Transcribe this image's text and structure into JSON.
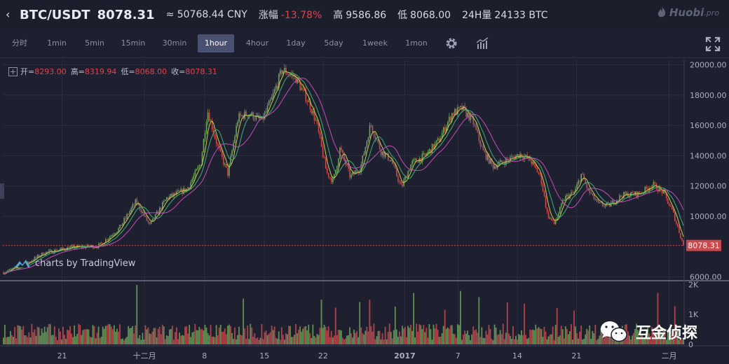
{
  "header": {
    "pair": "BTC/USDT",
    "price": "8078.31",
    "cny_label": "≈",
    "cny_value": "50768.44 CNY",
    "change_label": "涨幅",
    "change_value": "-13.78%",
    "high_label": "高",
    "high_value": "9586.86",
    "low_label": "低",
    "low_value": "8068.00",
    "volume_label": "24H量",
    "volume_value": "24133 BTC",
    "logo_text": "Huobi",
    "logo_suffix": ".pro"
  },
  "toolbar": {
    "intervals": [
      "分时",
      "1min",
      "5min",
      "15min",
      "30min",
      "1hour",
      "4hour",
      "1day",
      "5day",
      "1week",
      "1mon"
    ],
    "active": "1hour"
  },
  "ohlc": {
    "open_label": "开=",
    "open": "8293.00",
    "high_label": "高=",
    "high": "8319.94",
    "low_label": "低=",
    "low": "8068.00",
    "close_label": "收=",
    "close": "8078.31"
  },
  "watermark": {
    "tradingview": "charts by TradingView",
    "wechat": "互金侦探"
  },
  "colors": {
    "background": "#1e2030",
    "up": "#6ba35a",
    "down": "#c94a4d",
    "ma1": "#c6d24a",
    "ma2": "#3fb07a",
    "ma3": "#c54eb8",
    "price_tag": "#c94a4d"
  },
  "chart_data": {
    "type": "candlestick",
    "title": "",
    "price_axis": {
      "ylim": [
        5800,
        20300
      ],
      "ticks": [
        {
          "value": 20000,
          "label": "20000.00"
        },
        {
          "value": 18000,
          "label": "18000.00"
        },
        {
          "value": 16000,
          "label": "16000.00"
        },
        {
          "value": 14000,
          "label": "14000.00"
        },
        {
          "value": 12000,
          "label": "12000.00"
        },
        {
          "value": 10000,
          "label": "10000.00"
        },
        {
          "value": 6000,
          "label": "6000.00"
        }
      ],
      "last_price": 8078.31,
      "last_price_label": "8078.31"
    },
    "volume_axis": {
      "ylim": [
        0,
        2100
      ],
      "ticks": [
        {
          "value": 2000,
          "label": "2K"
        },
        {
          "value": 1000,
          "label": "1K"
        },
        {
          "value": 0,
          "label": "0"
        }
      ]
    },
    "x_axis": {
      "tick_labels": [
        "21",
        "十二月",
        "8",
        "15",
        "22",
        "2017",
        "7",
        "14",
        "21",
        "二月"
      ],
      "tick_positions": [
        0.087,
        0.208,
        0.296,
        0.384,
        0.47,
        0.59,
        0.668,
        0.755,
        0.842,
        0.978
      ]
    },
    "price_path_keypoints": [
      [
        0.0,
        6300
      ],
      [
        0.03,
        6800
      ],
      [
        0.06,
        7600
      ],
      [
        0.1,
        7950
      ],
      [
        0.14,
        8050
      ],
      [
        0.17,
        9200
      ],
      [
        0.195,
        11000
      ],
      [
        0.215,
        9400
      ],
      [
        0.24,
        11200
      ],
      [
        0.27,
        11800
      ],
      [
        0.29,
        13500
      ],
      [
        0.3,
        17000
      ],
      [
        0.315,
        14600
      ],
      [
        0.33,
        12800
      ],
      [
        0.345,
        16500
      ],
      [
        0.36,
        16800
      ],
      [
        0.38,
        16300
      ],
      [
        0.395,
        17800
      ],
      [
        0.41,
        19700
      ],
      [
        0.43,
        19100
      ],
      [
        0.45,
        17400
      ],
      [
        0.46,
        16200
      ],
      [
        0.475,
        12900
      ],
      [
        0.485,
        12300
      ],
      [
        0.495,
        14500
      ],
      [
        0.51,
        12600
      ],
      [
        0.525,
        13200
      ],
      [
        0.54,
        16100
      ],
      [
        0.555,
        14300
      ],
      [
        0.57,
        13700
      ],
      [
        0.585,
        11900
      ],
      [
        0.6,
        13500
      ],
      [
        0.62,
        14000
      ],
      [
        0.64,
        15000
      ],
      [
        0.66,
        16800
      ],
      [
        0.675,
        17100
      ],
      [
        0.69,
        16300
      ],
      [
        0.705,
        14300
      ],
      [
        0.72,
        13300
      ],
      [
        0.74,
        13700
      ],
      [
        0.76,
        14100
      ],
      [
        0.775,
        13700
      ],
      [
        0.79,
        12600
      ],
      [
        0.8,
        10100
      ],
      [
        0.81,
        9500
      ],
      [
        0.825,
        11200
      ],
      [
        0.84,
        11600
      ],
      [
        0.85,
        12800
      ],
      [
        0.86,
        11700
      ],
      [
        0.875,
        10800
      ],
      [
        0.89,
        10700
      ],
      [
        0.91,
        11400
      ],
      [
        0.935,
        11500
      ],
      [
        0.955,
        12100
      ],
      [
        0.97,
        11600
      ],
      [
        0.985,
        10200
      ],
      [
        1.0,
        8100
      ]
    ],
    "volume_level": 0.22
  }
}
